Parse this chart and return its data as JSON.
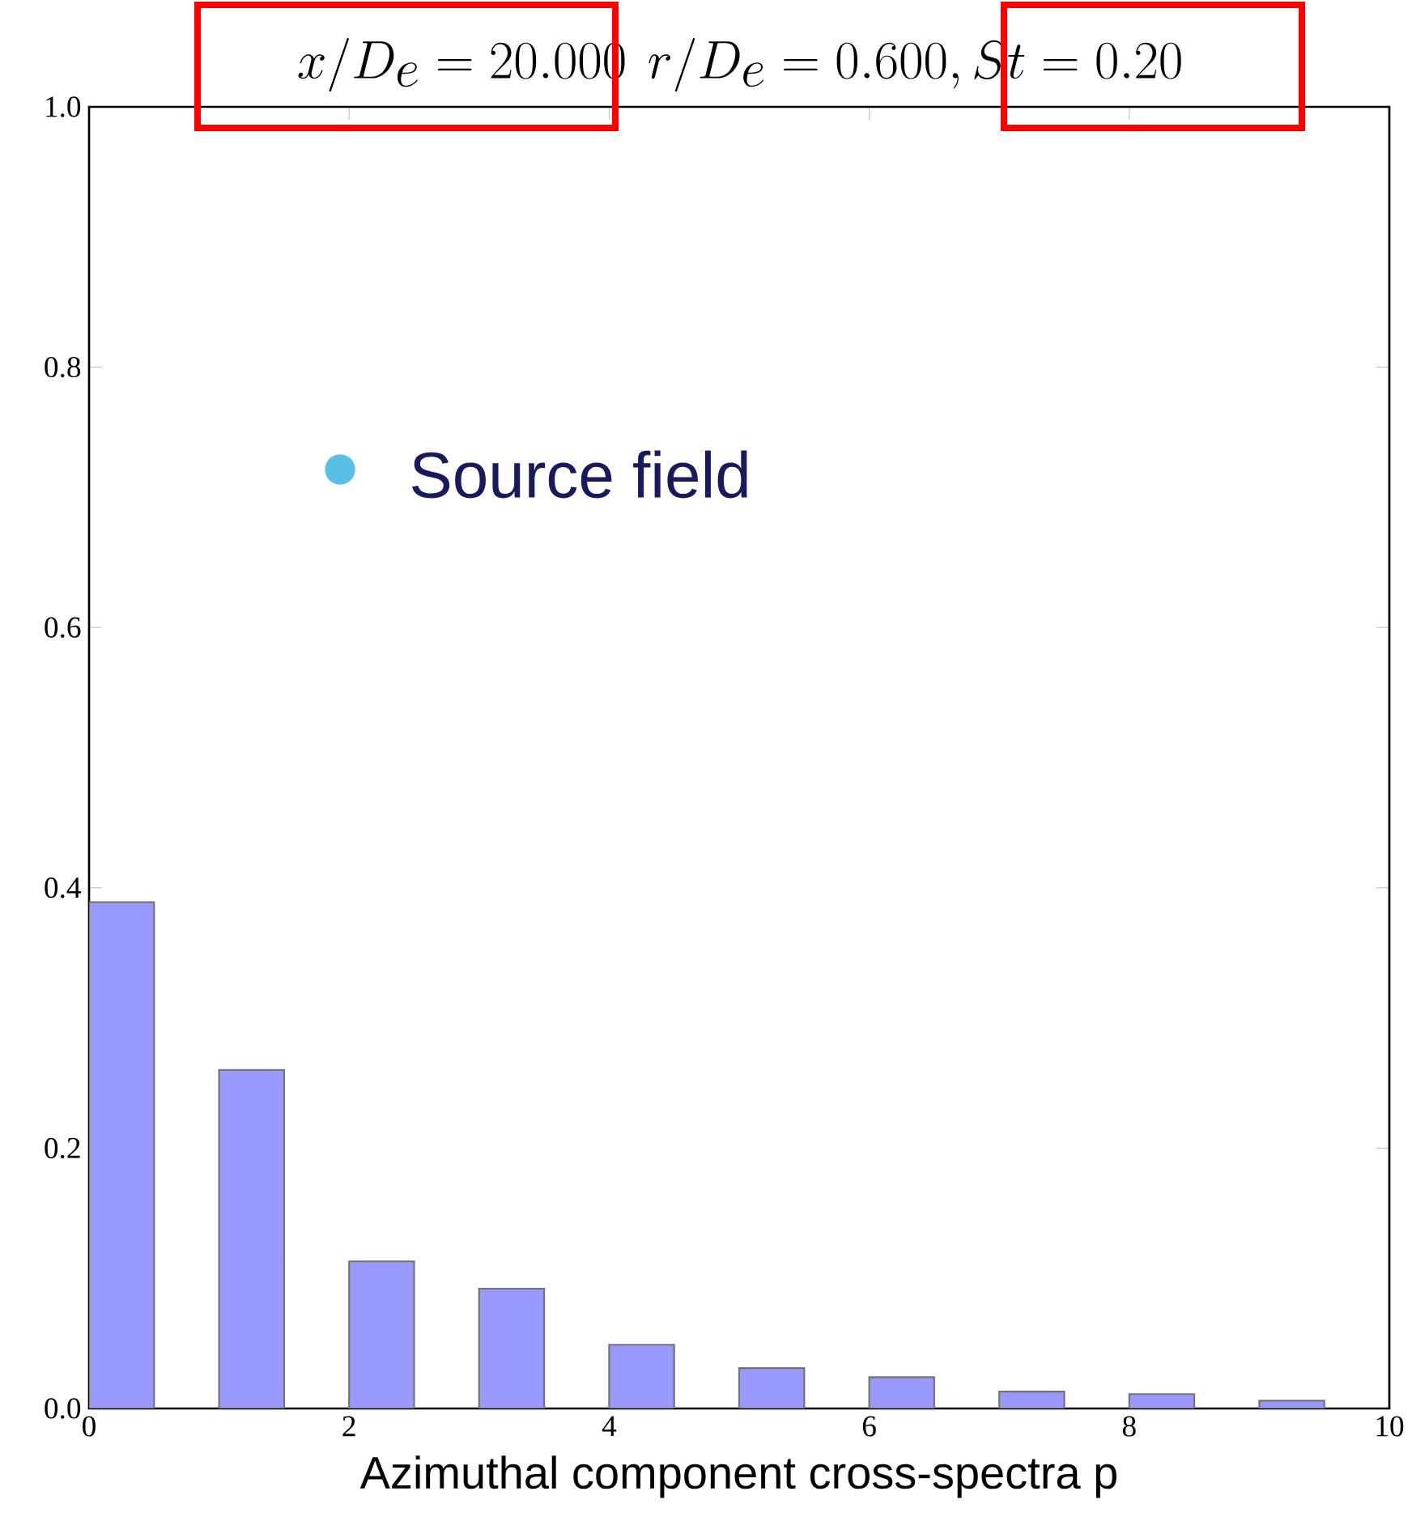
{
  "chart_data": {
    "type": "bar",
    "title": "x/D_e = 20.000\\ r/D_e = 0.600, St = 0.20",
    "xlabel": "Azimuthal component cross-spectra p",
    "annotations": [
      "Source field"
    ],
    "x": [
      0.25,
      1.25,
      2.25,
      3.25,
      4.25,
      5.25,
      6.25,
      7.25,
      8.25,
      9.25
    ],
    "values": [
      0.389,
      0.26,
      0.113,
      0.092,
      0.049,
      0.031,
      0.024,
      0.013,
      0.011,
      0.006
    ],
    "color": "#9999ff",
    "xlim": [
      0,
      10
    ],
    "ylim": [
      0,
      1
    ],
    "xticks": [
      0,
      2,
      4,
      6,
      8,
      10
    ],
    "yticks": [
      {
        "value": 0,
        "label": "0.0"
      },
      {
        "value": 0.2,
        "label": "0.2"
      },
      {
        "value": 0.4,
        "label": "0.4"
      },
      {
        "value": 0.6,
        "label": "0.6"
      },
      {
        "value": 0.8,
        "label": "0.8"
      },
      {
        "value": 1,
        "label": "1.0"
      }
    ],
    "grid": false
  }
}
